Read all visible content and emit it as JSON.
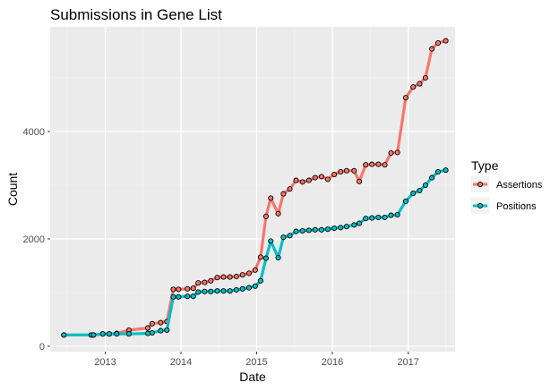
{
  "chart_data": {
    "type": "line",
    "title": "Submissions in Gene List",
    "xlabel": "Date",
    "ylabel": "Count",
    "grid": true,
    "legend_placement": "right",
    "ylim": [
      -100,
      5950
    ],
    "xlim": [
      "2012-04-10",
      "2017-08-15"
    ],
    "x_ticks": [
      "2013",
      "2014",
      "2015",
      "2016",
      "2017"
    ],
    "y_ticks": [
      0,
      2000,
      4000
    ],
    "legend_title": "Type",
    "series": [
      {
        "name": "Assertions",
        "color": "#f8766d",
        "points": [
          [
            "2012-06-15",
            210
          ],
          [
            "2012-10-25",
            210
          ],
          [
            "2012-11-05",
            210
          ],
          [
            "2012-12-20",
            230
          ],
          [
            "2013-01-20",
            230
          ],
          [
            "2013-02-25",
            240
          ],
          [
            "2013-04-25",
            300
          ],
          [
            "2013-07-25",
            340
          ],
          [
            "2013-08-15",
            420
          ],
          [
            "2013-09-25",
            440
          ],
          [
            "2013-10-25",
            460
          ],
          [
            "2013-11-25",
            1060
          ],
          [
            "2013-12-20",
            1060
          ],
          [
            "2014-02-01",
            1070
          ],
          [
            "2014-03-01",
            1080
          ],
          [
            "2014-03-25",
            1180
          ],
          [
            "2014-04-25",
            1190
          ],
          [
            "2014-05-25",
            1220
          ],
          [
            "2014-06-25",
            1280
          ],
          [
            "2014-07-25",
            1290
          ],
          [
            "2014-08-25",
            1290
          ],
          [
            "2014-09-25",
            1300
          ],
          [
            "2014-10-25",
            1330
          ],
          [
            "2014-11-25",
            1360
          ],
          [
            "2014-12-25",
            1420
          ],
          [
            "2015-01-20",
            1660
          ],
          [
            "2015-02-15",
            2420
          ],
          [
            "2015-03-10",
            2760
          ],
          [
            "2015-04-15",
            2470
          ],
          [
            "2015-05-10",
            2840
          ],
          [
            "2015-06-10",
            2930
          ],
          [
            "2015-07-10",
            3090
          ],
          [
            "2015-08-10",
            3060
          ],
          [
            "2015-09-10",
            3090
          ],
          [
            "2015-10-10",
            3140
          ],
          [
            "2015-11-10",
            3160
          ],
          [
            "2015-12-10",
            3110
          ],
          [
            "2016-01-10",
            3200
          ],
          [
            "2016-02-10",
            3250
          ],
          [
            "2016-03-10",
            3270
          ],
          [
            "2016-04-15",
            3270
          ],
          [
            "2016-05-10",
            3070
          ],
          [
            "2016-06-10",
            3380
          ],
          [
            "2016-07-10",
            3390
          ],
          [
            "2016-08-10",
            3390
          ],
          [
            "2016-09-10",
            3380
          ],
          [
            "2016-10-10",
            3600
          ],
          [
            "2016-11-10",
            3610
          ],
          [
            "2016-12-20",
            4630
          ],
          [
            "2017-01-25",
            4830
          ],
          [
            "2017-02-25",
            4890
          ],
          [
            "2017-03-25",
            5000
          ],
          [
            "2017-04-25",
            5540
          ],
          [
            "2017-05-25",
            5650
          ],
          [
            "2017-07-01",
            5690
          ]
        ]
      },
      {
        "name": "Positions",
        "color": "#00bfc4",
        "points": [
          [
            "2012-06-15",
            210
          ],
          [
            "2012-10-25",
            210
          ],
          [
            "2012-11-05",
            210
          ],
          [
            "2012-12-20",
            230
          ],
          [
            "2013-01-20",
            230
          ],
          [
            "2013-02-25",
            230
          ],
          [
            "2013-04-25",
            230
          ],
          [
            "2013-07-25",
            240
          ],
          [
            "2013-08-15",
            250
          ],
          [
            "2013-09-25",
            290
          ],
          [
            "2013-10-25",
            300
          ],
          [
            "2013-11-25",
            920
          ],
          [
            "2013-12-20",
            920
          ],
          [
            "2014-02-01",
            930
          ],
          [
            "2014-03-01",
            930
          ],
          [
            "2014-03-25",
            1010
          ],
          [
            "2014-04-25",
            1020
          ],
          [
            "2014-05-25",
            1020
          ],
          [
            "2014-06-25",
            1030
          ],
          [
            "2014-07-25",
            1030
          ],
          [
            "2014-08-25",
            1030
          ],
          [
            "2014-09-25",
            1050
          ],
          [
            "2014-10-25",
            1070
          ],
          [
            "2014-11-25",
            1090
          ],
          [
            "2014-12-25",
            1120
          ],
          [
            "2015-01-20",
            1220
          ],
          [
            "2015-02-15",
            1640
          ],
          [
            "2015-03-10",
            1960
          ],
          [
            "2015-04-15",
            1650
          ],
          [
            "2015-05-10",
            2030
          ],
          [
            "2015-06-10",
            2060
          ],
          [
            "2015-07-10",
            2140
          ],
          [
            "2015-08-10",
            2150
          ],
          [
            "2015-09-10",
            2160
          ],
          [
            "2015-10-10",
            2170
          ],
          [
            "2015-11-10",
            2170
          ],
          [
            "2015-12-10",
            2180
          ],
          [
            "2016-01-10",
            2200
          ],
          [
            "2016-02-10",
            2210
          ],
          [
            "2016-03-10",
            2230
          ],
          [
            "2016-04-15",
            2260
          ],
          [
            "2016-05-10",
            2290
          ],
          [
            "2016-06-10",
            2380
          ],
          [
            "2016-07-10",
            2390
          ],
          [
            "2016-08-10",
            2400
          ],
          [
            "2016-09-10",
            2400
          ],
          [
            "2016-10-10",
            2440
          ],
          [
            "2016-11-10",
            2450
          ],
          [
            "2016-12-20",
            2700
          ],
          [
            "2017-01-25",
            2850
          ],
          [
            "2017-02-25",
            2900
          ],
          [
            "2017-03-25",
            3000
          ],
          [
            "2017-04-25",
            3140
          ],
          [
            "2017-05-25",
            3250
          ],
          [
            "2017-07-01",
            3280
          ]
        ]
      }
    ]
  }
}
